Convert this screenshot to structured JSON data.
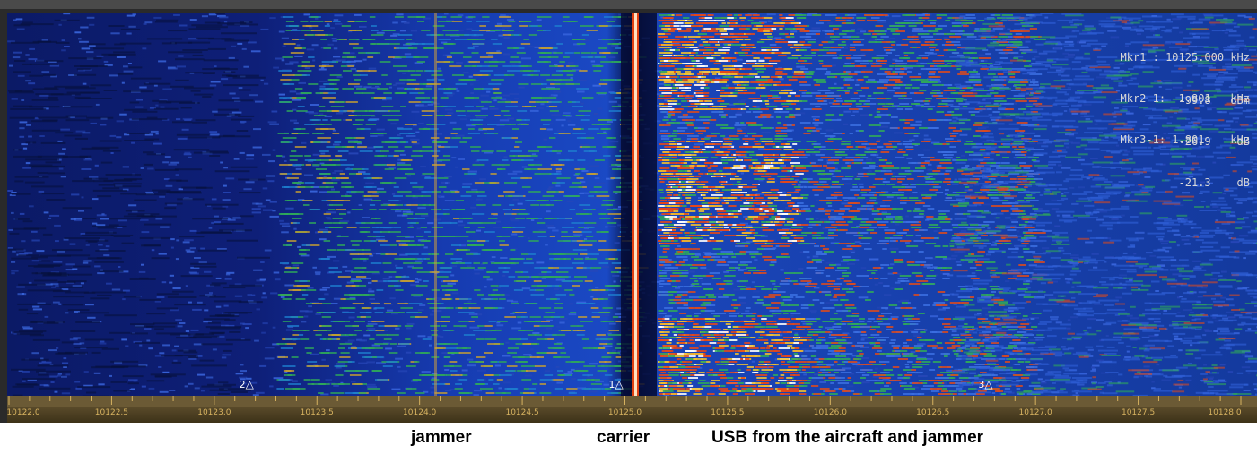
{
  "markers": [
    {
      "name": "Mkr1",
      "line1": "Mkr1 : 10125.000 kHz",
      "line2": "-99.8   dBm"
    },
    {
      "name": "Mkr2-1",
      "line1": "Mkr2-1: -1.801   kHz",
      "line2": "-26.9    dB"
    },
    {
      "name": "Mkr3-1",
      "line1": "Mkr3-1: 1.801    kHz",
      "line2": "-21.3    dB"
    }
  ],
  "marker_tags": [
    {
      "label": "2",
      "freq": 10123.2
    },
    {
      "label": "1",
      "freq": 10125.0
    },
    {
      "label": "3",
      "freq": 10126.8
    }
  ],
  "axis": {
    "min": 10122.0,
    "max": 10128.0,
    "ticks": [
      "10122.0",
      "10122.5",
      "10123.0",
      "10123.5",
      "10124.0",
      "10124.5",
      "10125.0",
      "10125.5",
      "10126.0",
      "10126.5",
      "10127.0",
      "10127.5",
      "10128.0"
    ]
  },
  "captions": {
    "jammer": "jammer",
    "carrier": "carrier",
    "usb": "USB from the aircraft and jammer"
  },
  "colors": {
    "background": "#0a1550",
    "noise": "#1b3fb0",
    "signal_mid": "#23a35a",
    "signal_high": "#e05a1a",
    "carrier": "#ffe0c0",
    "axis_text": "#d6b260"
  }
}
